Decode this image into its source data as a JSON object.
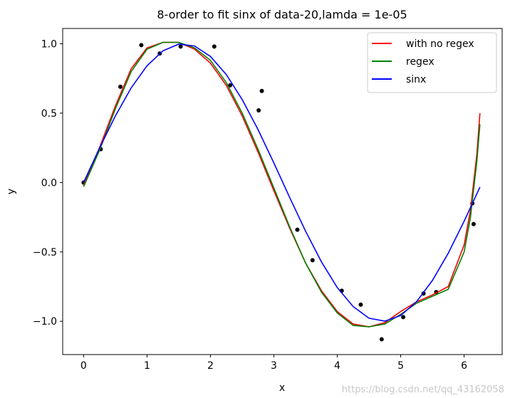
{
  "chart_data": {
    "type": "line",
    "title": "8-order to fit sinx of data-20,lamda = 1e-05",
    "xlabel": "x",
    "ylabel": "y",
    "xlim": [
      -0.33,
      6.6
    ],
    "ylim": [
      -1.24,
      1.11
    ],
    "xticks": [
      0,
      1,
      2,
      3,
      4,
      5,
      6
    ],
    "yticks": [
      -1.0,
      -0.5,
      0.0,
      0.5,
      1.0
    ],
    "ytick_labels": [
      "−1.0",
      "−0.5",
      "0.0",
      "0.5",
      "1.0"
    ],
    "grid": false,
    "legend_position": "top-right",
    "scatter": {
      "x": [
        0,
        0.27,
        0.58,
        0.91,
        1.2,
        1.53,
        2.06,
        2.31,
        2.76,
        2.81,
        3.37,
        3.61,
        4.07,
        4.37,
        4.7,
        5.04,
        5.36,
        5.56,
        6.13,
        6.15
      ],
      "y": [
        0.0,
        0.24,
        0.69,
        0.99,
        0.93,
        0.98,
        0.98,
        0.7,
        0.52,
        0.66,
        -0.34,
        -0.56,
        -0.78,
        -0.88,
        -1.13,
        -0.97,
        -0.8,
        -0.79,
        -0.15,
        -0.3
      ],
      "color": "#000000"
    },
    "series": [
      {
        "name": "with no regex",
        "color": "#ff0000",
        "x": [
          0,
          0.25,
          0.5,
          0.75,
          1,
          1.25,
          1.5,
          1.75,
          2,
          2.25,
          2.5,
          2.75,
          3,
          3.25,
          3.5,
          3.75,
          4,
          4.25,
          4.5,
          4.75,
          5,
          5.25,
          5.5,
          5.75,
          6,
          6.1,
          6.2,
          6.25
        ],
        "y": [
          -0.02,
          0.25,
          0.55,
          0.82,
          0.97,
          1.01,
          1.01,
          0.96,
          0.86,
          0.7,
          0.48,
          0.22,
          -0.06,
          -0.33,
          -0.58,
          -0.78,
          -0.93,
          -1.02,
          -1.04,
          -1.01,
          -0.93,
          -0.86,
          -0.81,
          -0.75,
          -0.45,
          -0.2,
          0.2,
          0.5
        ]
      },
      {
        "name": "regex",
        "color": "#008000",
        "x": [
          0,
          0.25,
          0.5,
          0.75,
          1,
          1.25,
          1.5,
          1.75,
          2,
          2.25,
          2.5,
          2.75,
          3,
          3.25,
          3.5,
          3.75,
          4,
          4.25,
          4.5,
          4.75,
          5,
          5.25,
          5.5,
          5.75,
          6,
          6.1,
          6.2,
          6.25
        ],
        "y": [
          -0.03,
          0.23,
          0.53,
          0.8,
          0.96,
          1.01,
          1.01,
          0.97,
          0.88,
          0.72,
          0.5,
          0.24,
          -0.04,
          -0.32,
          -0.58,
          -0.79,
          -0.94,
          -1.03,
          -1.04,
          -1.02,
          -0.95,
          -0.87,
          -0.82,
          -0.77,
          -0.5,
          -0.25,
          0.15,
          0.42
        ]
      },
      {
        "name": "sinx",
        "color": "#0000ff",
        "x": [
          0,
          0.25,
          0.5,
          0.75,
          1,
          1.25,
          1.5,
          1.75,
          2,
          2.25,
          2.5,
          2.75,
          3,
          3.25,
          3.5,
          3.75,
          4,
          4.25,
          4.5,
          4.75,
          5,
          5.25,
          5.5,
          5.75,
          6,
          6.25
        ],
        "y": [
          0,
          0.247,
          0.479,
          0.682,
          0.841,
          0.949,
          0.997,
          0.984,
          0.909,
          0.778,
          0.598,
          0.382,
          0.141,
          -0.108,
          -0.351,
          -0.572,
          -0.757,
          -0.894,
          -0.978,
          -0.999,
          -0.959,
          -0.859,
          -0.706,
          -0.51,
          -0.279,
          -0.033
        ]
      }
    ]
  },
  "watermark": "https://blog.csdn.net/qq_43162058"
}
